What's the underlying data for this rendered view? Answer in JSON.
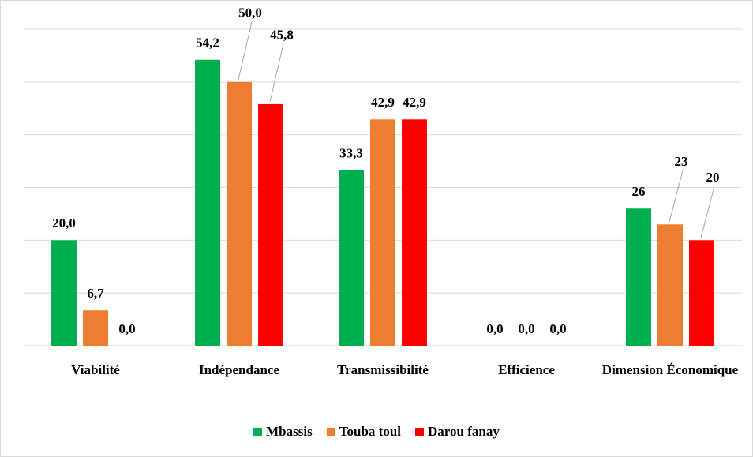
{
  "chart_data": {
    "type": "bar",
    "categories": [
      "Viabilité",
      "Indépendance",
      "Transmissibilité",
      "Efficience",
      "Dimension Économique"
    ],
    "series": [
      {
        "name": "Mbassis",
        "color": "#00b050",
        "values": [
          20,
          54.2,
          33.3,
          0,
          26
        ],
        "value_labels": [
          "20,0",
          "54,2",
          "33,3",
          "0,0",
          "26"
        ]
      },
      {
        "name": "Touba toul",
        "color": "#ed7d31",
        "values": [
          6.7,
          50,
          42.9,
          0,
          23
        ],
        "value_labels": [
          "6,7",
          "50,0",
          "42,9",
          "0,0",
          "23"
        ]
      },
      {
        "name": "Darou fanay",
        "color": "#ff0000",
        "values": [
          0,
          45.8,
          42.9,
          0,
          20
        ],
        "value_labels": [
          "0,0",
          "45,8",
          "42,9",
          "0,0",
          "20"
        ]
      }
    ],
    "ylim": [
      0,
      60
    ],
    "yticks": [
      0,
      10,
      20,
      30,
      40,
      50,
      60
    ],
    "grid": true,
    "tick_labels": false,
    "legend": "bottom"
  }
}
